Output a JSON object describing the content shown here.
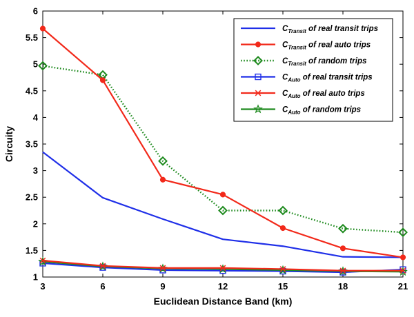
{
  "chart_data": {
    "type": "line",
    "title": "",
    "xlabel": "Euclidean Distance Band (km)",
    "ylabel": "Circuity",
    "x": [
      3,
      6,
      9,
      12,
      15,
      18,
      21
    ],
    "xlim": [
      3,
      21
    ],
    "ylim": [
      1,
      6
    ],
    "xticks": [
      "3",
      "6",
      "9",
      "12",
      "15",
      "18",
      "21"
    ],
    "yticks": [
      "1",
      "1.5",
      "2",
      "2.5",
      "3",
      "3.5",
      "4",
      "4.5",
      "5",
      "5.5",
      "6"
    ],
    "grid": false,
    "legend_position": "top-right",
    "series": [
      {
        "name_main": "C",
        "name_sub": "Transit",
        "name_rest": " of real transit trips",
        "color": "#1f2fe8",
        "marker": "none",
        "dash": "solid",
        "values": [
          3.35,
          2.49,
          2.09,
          1.71,
          1.58,
          1.38,
          1.37
        ]
      },
      {
        "name_main": "C",
        "name_sub": "Transit",
        "name_rest": " of real auto trips",
        "color": "#f2291a",
        "marker": "circle",
        "dash": "solid",
        "values": [
          5.67,
          4.7,
          2.83,
          2.55,
          1.92,
          1.54,
          1.37
        ]
      },
      {
        "name_main": "C",
        "name_sub": "Transit",
        "name_rest": " of random trips",
        "color": "#1e8a1e",
        "marker": "diamond",
        "dash": "dotted",
        "values": [
          4.97,
          4.8,
          3.18,
          2.25,
          2.25,
          1.91,
          1.84
        ]
      },
      {
        "name_main": "C",
        "name_sub": "Auto",
        "name_rest": " of real transit trips",
        "color": "#1f2fe8",
        "marker": "square",
        "dash": "solid",
        "values": [
          1.26,
          1.18,
          1.13,
          1.12,
          1.11,
          1.09,
          1.14
        ]
      },
      {
        "name_main": "C",
        "name_sub": "Auto",
        "name_rest": " of real auto trips",
        "color": "#f2291a",
        "marker": "x",
        "dash": "solid",
        "values": [
          1.31,
          1.21,
          1.17,
          1.17,
          1.15,
          1.12,
          1.12
        ]
      },
      {
        "name_main": "C",
        "name_sub": "Auto",
        "name_rest": " of random trips",
        "color": "#1e8a1e",
        "marker": "star",
        "dash": "solid",
        "values": [
          1.29,
          1.2,
          1.16,
          1.15,
          1.13,
          1.11,
          1.1
        ]
      }
    ]
  }
}
